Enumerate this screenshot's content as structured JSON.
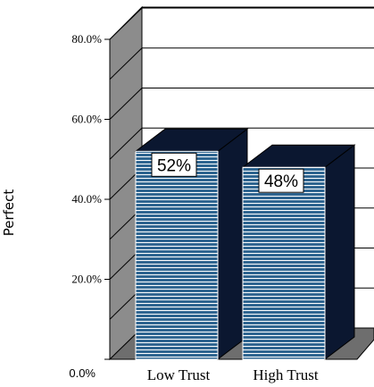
{
  "chart_data": {
    "type": "bar",
    "categories": [
      "Low Trust",
      "High Trust"
    ],
    "values": [
      52,
      48
    ],
    "data_labels": [
      "52%",
      "48%"
    ],
    "ylabel": "Perfect",
    "xlabel": "",
    "title": "",
    "ylim": [
      0,
      80
    ],
    "yticks": [
      {
        "value": 0,
        "label": "0.0%"
      },
      {
        "value": 20,
        "label": "20.0%"
      },
      {
        "value": 40,
        "label": "40.0%"
      },
      {
        "value": 60,
        "label": "60.0%"
      },
      {
        "value": 80,
        "label": "80.0%"
      }
    ],
    "grid": true,
    "legend": "none",
    "style": "3d",
    "colors": {
      "bar_front": "#2f6590",
      "bar_stripe": "#ffffff",
      "bar_side": "#0b1730",
      "bar_top": "#0b1730",
      "wall": "#8c8c8c",
      "floor": "#6e6e6e"
    }
  }
}
